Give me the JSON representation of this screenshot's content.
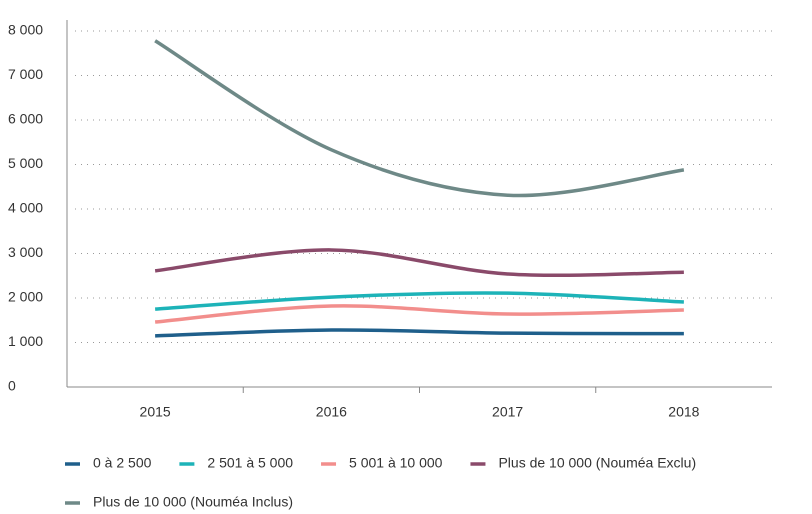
{
  "chart_data": {
    "type": "line",
    "categories": [
      "2015",
      "2016",
      "2017",
      "2018"
    ],
    "series": [
      {
        "name": "0 à 2 500",
        "color": "#1f5f8b",
        "values": [
          1150,
          1280,
          1210,
          1200
        ]
      },
      {
        "name": "2 501 à 5 000",
        "color": "#1db3b8",
        "values": [
          1750,
          2020,
          2110,
          1910
        ]
      },
      {
        "name": "5 001 à 10 000",
        "color": "#f28e8c",
        "values": [
          1460,
          1820,
          1640,
          1730
        ]
      },
      {
        "name": "Plus de 10 000 (Nouméa Exclu)",
        "color": "#8a4a6a",
        "values": [
          2610,
          3080,
          2540,
          2580
        ]
      },
      {
        "name": "Plus de 10 000 (Nouméa Inclus)",
        "color": "#6e8987",
        "values": [
          7780,
          5330,
          4310,
          4880
        ]
      }
    ],
    "ylim": [
      0,
      8000
    ],
    "yticks": [
      0,
      {
        "value": 1000,
        "label": "1 000"
      },
      {
        "value": 2000,
        "label": "2 000"
      },
      {
        "value": 3000,
        "label": "3 000"
      },
      {
        "value": 4000,
        "label": "4 000"
      },
      {
        "value": 5000,
        "label": "5 000"
      },
      {
        "value": 6000,
        "label": "6 000"
      },
      {
        "value": 7000,
        "label": "7 000"
      },
      {
        "value": 8000,
        "label": "8 000"
      }
    ],
    "grid": true
  }
}
